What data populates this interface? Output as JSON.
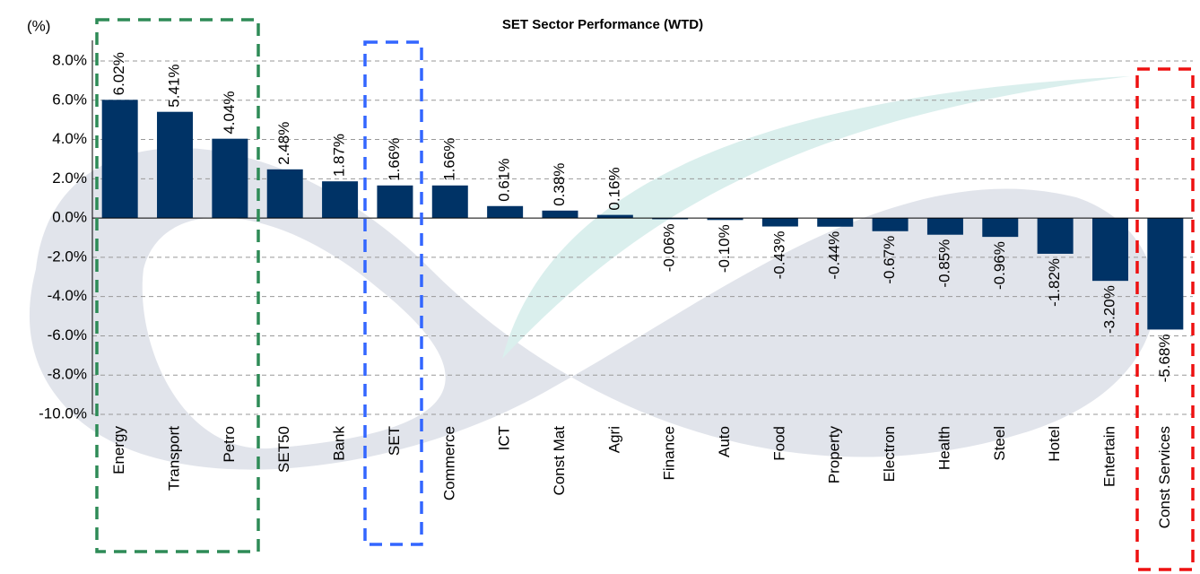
{
  "chart_data": {
    "type": "bar",
    "title": "SET Sector  Performance (WTD)",
    "y_label": "(%)",
    "categories": [
      "Energy",
      "Transport",
      "Petro",
      "SET50",
      "Bank",
      "SET",
      "Commerce",
      "ICT",
      "Const Mat",
      "Agri",
      "Finance",
      "Auto",
      "Food",
      "Property",
      "Electron",
      "Health",
      "Steel",
      "Hotel",
      "Entertain",
      "Const Services"
    ],
    "values": [
      6.02,
      5.41,
      4.04,
      2.48,
      1.87,
      1.66,
      1.66,
      0.61,
      0.38,
      0.16,
      -0.06,
      -0.1,
      -0.43,
      -0.44,
      -0.67,
      -0.85,
      -0.96,
      -1.82,
      -3.2,
      -5.68
    ],
    "value_labels": [
      "6.02%",
      "5.41%",
      "4.04%",
      "2.48%",
      "1.87%",
      "1.66%",
      "1.66%",
      "0.61%",
      "0.38%",
      "0.16%",
      "-0.06%",
      "-0.10%",
      "-0.43%",
      "-0.44%",
      "-0.67%",
      "-0.85%",
      "-0.96%",
      "-1.82%",
      "-3.20%",
      "-5.68%"
    ],
    "color": "#003366",
    "ylim": [
      -10,
      8
    ],
    "yticks": [
      {
        "value": -10,
        "label": "-10.0%"
      },
      {
        "value": -8,
        "label": "-8.0%"
      },
      {
        "value": -6,
        "label": "-6.0%"
      },
      {
        "value": -4,
        "label": "-4.0%"
      },
      {
        "value": -2,
        "label": "-2.0%"
      },
      {
        "value": 0,
        "label": "0.0%"
      },
      {
        "value": 2,
        "label": "2.0%"
      },
      {
        "value": 4,
        "label": "4.0%"
      },
      {
        "value": 6,
        "label": "6.0%"
      },
      {
        "value": 8,
        "label": "8.0%"
      }
    ],
    "grid": true
  }
}
